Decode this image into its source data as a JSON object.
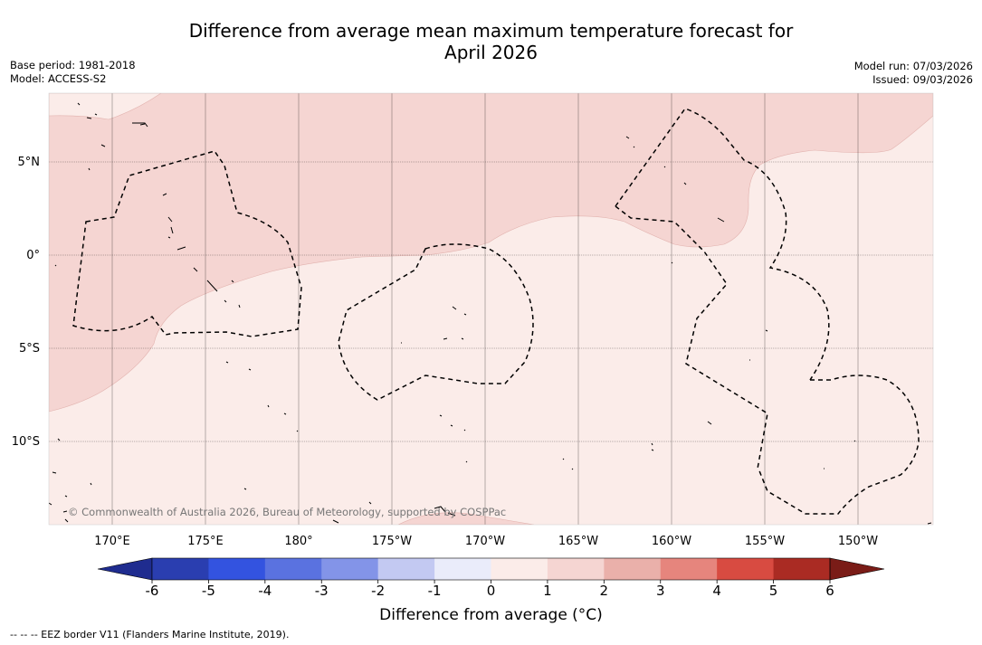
{
  "title_line1": "Difference from average mean maximum temperature forecast for",
  "title_line2": "April 2026",
  "base_period": "Base period: 1981-2018",
  "model": "Model: ACCESS-S2",
  "model_run": "Model run: 07/03/2026",
  "issued": "Issued: 09/03/2026",
  "lat_labels": [
    "5°N",
    "0°",
    "5°S",
    "10°S"
  ],
  "lon_labels": [
    "170°E",
    "175°E",
    "180°",
    "175°W",
    "170°W",
    "165°W",
    "160°W",
    "155°W",
    "150°W"
  ],
  "copyright": "© Commonwealth of Australia 2026, Bureau of Meteorology, supported by COSPPac",
  "colorbar": {
    "label": "Difference from average (°C)",
    "ticks": [
      "-6",
      "-5",
      "-4",
      "-3",
      "-2",
      "-1",
      "0",
      "1",
      "2",
      "3",
      "4",
      "5",
      "6"
    ],
    "colors": [
      "#1f2c8f",
      "#2a3eb0",
      "#3353e0",
      "#5a72e0",
      "#8394e8",
      "#c3c9f2",
      "#eaecfa",
      "#fbece9",
      "#f5d5d2",
      "#eab0aa",
      "#e6857d",
      "#d84b41",
      "#aa2b23",
      "#7a1c17"
    ]
  },
  "footnote": "--  --  -- EEZ border V11 (Flanders Marine Institute, 2019)."
}
